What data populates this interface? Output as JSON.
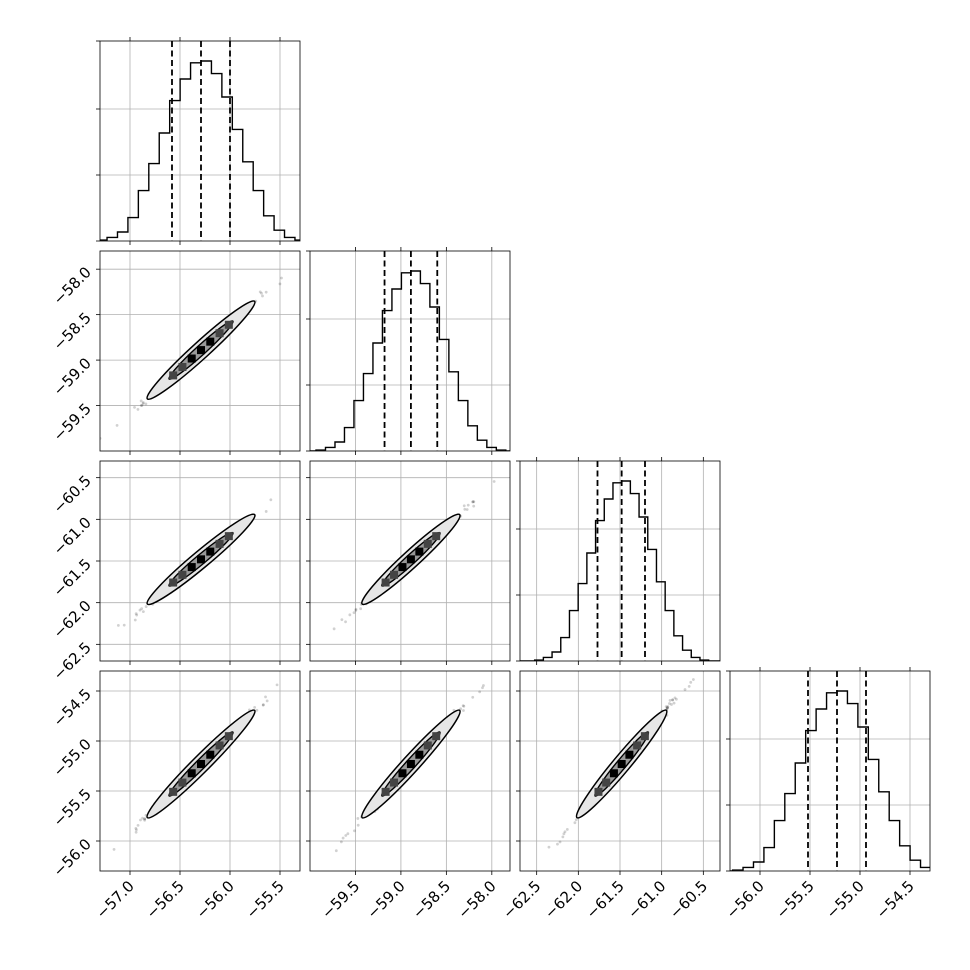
{
  "chart_data": {
    "type": "corner",
    "variables": [
      {
        "range": [
          -57.3,
          -55.3
        ],
        "ticks": [
          -57.0,
          -56.5,
          -56.0,
          -55.5
        ],
        "tick_labels": [
          "−57.0",
          "−56.5",
          "−56.0",
          "−55.5"
        ],
        "quantiles": [
          -56.58,
          -56.29,
          -56.0
        ],
        "mean": -56.29,
        "sigma": 0.29
      },
      {
        "range": [
          -60.0,
          -57.8
        ],
        "ticks": [
          -59.5,
          -59.0,
          -58.5,
          -58.0
        ],
        "tick_labels": [
          "−59.5",
          "−59.0",
          "−58.5",
          "−58.0"
        ],
        "quantiles": [
          -59.18,
          -58.89,
          -58.6
        ],
        "mean": -58.89,
        "sigma": 0.29
      },
      {
        "range": [
          -62.7,
          -60.3
        ],
        "ticks": [
          -62.5,
          -62.0,
          -61.5,
          -61.0,
          -60.5
        ],
        "tick_labels": [
          "−62.5",
          "−62.0",
          "−61.5",
          "−61.0",
          "−60.5"
        ],
        "quantiles": [
          -61.77,
          -61.48,
          -61.2
        ],
        "mean": -61.48,
        "sigma": 0.29
      },
      {
        "range": [
          -56.3,
          -54.3
        ],
        "ticks": [
          -56.0,
          -55.5,
          -55.0,
          -54.5
        ],
        "tick_labels": [
          "−56.0",
          "−55.5",
          "−55.0",
          "−54.5"
        ],
        "quantiles": [
          -55.52,
          -55.23,
          -54.94
        ],
        "mean": -55.23,
        "sigma": 0.29
      }
    ],
    "histogram": {
      "bins": 20,
      "relative_counts": [
        0.005,
        0.02,
        0.05,
        0.13,
        0.28,
        0.43,
        0.6,
        0.78,
        0.9,
        0.99,
        1.0,
        0.93,
        0.8,
        0.62,
        0.44,
        0.28,
        0.14,
        0.06,
        0.02,
        0.005
      ]
    },
    "quantile_style": "dashed",
    "grid": true,
    "contours": "1 and 2 sigma levels, highly correlated pairs"
  }
}
